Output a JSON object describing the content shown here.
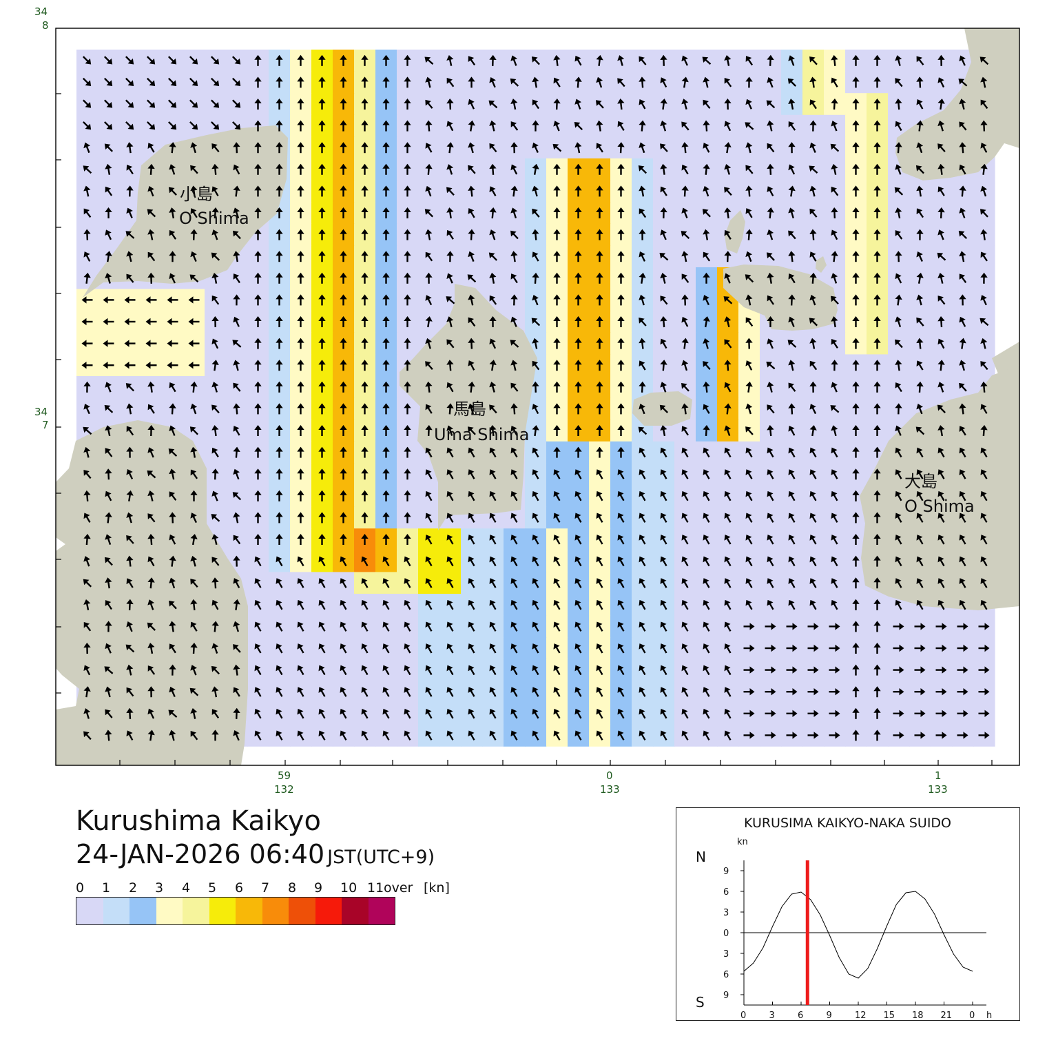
{
  "map": {
    "lat_labels": [
      {
        "deg": "34",
        "min": "8"
      },
      {
        "deg": "34",
        "min": "7"
      }
    ],
    "lon_labels": [
      {
        "min": "59",
        "deg": "132"
      },
      {
        "min": "0",
        "deg": "133"
      },
      {
        "min": "1",
        "deg": "133"
      }
    ],
    "islands": [
      {
        "jp": "小島",
        "en": "O Shima"
      },
      {
        "jp": "馬島",
        "en": "Uma Shima"
      },
      {
        "jp": "大島",
        "en": "O Shima"
      }
    ],
    "colors": {
      "land": "#cfcfbf",
      "frame": "#000000",
      "arrow": "#000000"
    }
  },
  "title": "Kurushima Kaikyo",
  "datetime": "24-JAN-2026 06:40",
  "timezone": "JST(UTC+9)",
  "legend": {
    "ticks": [
      "0",
      "1",
      "2",
      "3",
      "4",
      "5",
      "6",
      "7",
      "8",
      "9",
      "10",
      "11"
    ],
    "over_label": "over",
    "unit": "[kn]",
    "colors": [
      "#d8d8f6",
      "#c4def8",
      "#96c4f6",
      "#fffac4",
      "#f6f49c",
      "#f6ec0a",
      "#f8b808",
      "#f88c0a",
      "#ee5008",
      "#f61a0a",
      "#a80428",
      "#b0045a"
    ]
  },
  "tide": {
    "title": "KURUSIMA KAIKYO-NAKA SUIDO",
    "unit": "kn",
    "north_label": "N",
    "south_label": "S",
    "y_ticks": [
      "9",
      "6",
      "3",
      "0",
      "3",
      "6",
      "9"
    ],
    "x_ticks": [
      "0",
      "3",
      "6",
      "9",
      "12",
      "15",
      "18",
      "21",
      "0"
    ],
    "x_unit": "h",
    "series": {
      "hours": [
        0,
        1,
        2,
        3,
        4,
        5,
        6,
        7,
        8,
        9,
        10,
        11,
        12,
        13,
        14,
        15,
        16,
        17,
        18,
        19,
        20,
        21,
        22,
        23,
        24
      ],
      "knots": [
        -5.6,
        -4.4,
        -2.2,
        0.9,
        3.8,
        5.6,
        5.9,
        4.8,
        2.6,
        -0.4,
        -3.6,
        -6.0,
        -6.6,
        -5.2,
        -2.3,
        1.0,
        4.1,
        5.8,
        6.0,
        4.9,
        2.7,
        -0.3,
        -3.1,
        -5.0,
        -5.6
      ]
    },
    "current_hour": 6.67,
    "marker_color": "#ee1c1c"
  }
}
